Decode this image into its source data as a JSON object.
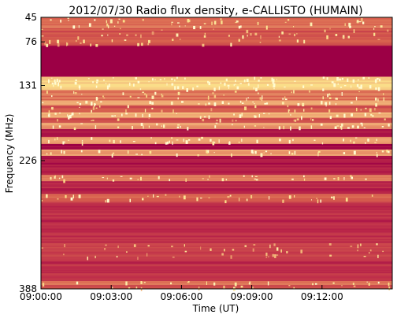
{
  "chart_data": {
    "type": "heatmap",
    "title": "2012/07/30  Radio flux density, e-CALLISTO (HUMAIN)",
    "xlabel": "Time (UT)",
    "ylabel": "Frequency (MHz)",
    "x_ticks": [
      "09:00:00",
      "09:03:00",
      "09:06:00",
      "09:09:00",
      "09:12:00"
    ],
    "y_ticks": [
      "45",
      "76",
      "131",
      "226",
      "388"
    ],
    "colormap": [
      "#9c0045",
      "#c0304a",
      "#d8624e",
      "#eda070",
      "#fbe08a",
      "#fffbd0"
    ],
    "bands": [
      {
        "from": 45,
        "to": 55,
        "intensity": 0.42
      },
      {
        "from": 55,
        "to": 58,
        "intensity": 0.55
      },
      {
        "from": 58,
        "to": 72,
        "intensity": 0.32
      },
      {
        "from": 72,
        "to": 76,
        "intensity": 0.38
      },
      {
        "from": 76,
        "to": 81,
        "intensity": 0.3
      },
      {
        "from": 81,
        "to": 120,
        "intensity": 0.0
      },
      {
        "from": 120,
        "to": 137,
        "intensity": 0.72
      },
      {
        "from": 137,
        "to": 150,
        "intensity": 0.45
      },
      {
        "from": 150,
        "to": 156,
        "intensity": 0.62
      },
      {
        "from": 156,
        "to": 165,
        "intensity": 0.35
      },
      {
        "from": 165,
        "to": 172,
        "intensity": 0.65
      },
      {
        "from": 172,
        "to": 178,
        "intensity": 0.3
      },
      {
        "from": 178,
        "to": 186,
        "intensity": 0.58
      },
      {
        "from": 186,
        "to": 196,
        "intensity": 0.12
      },
      {
        "from": 196,
        "to": 205,
        "intensity": 0.6
      },
      {
        "from": 205,
        "to": 212,
        "intensity": 0.05
      },
      {
        "from": 212,
        "to": 220,
        "intensity": 0.55
      },
      {
        "from": 220,
        "to": 244,
        "intensity": 0.1
      },
      {
        "from": 244,
        "to": 252,
        "intensity": 0.5
      },
      {
        "from": 252,
        "to": 268,
        "intensity": 0.15
      },
      {
        "from": 268,
        "to": 278,
        "intensity": 0.42
      },
      {
        "from": 278,
        "to": 330,
        "intensity": 0.18
      },
      {
        "from": 330,
        "to": 350,
        "intensity": 0.28
      },
      {
        "from": 350,
        "to": 378,
        "intensity": 0.2
      },
      {
        "from": 378,
        "to": 383,
        "intensity": 0.5
      },
      {
        "from": 383,
        "to": 388,
        "intensity": 0.3
      }
    ]
  }
}
